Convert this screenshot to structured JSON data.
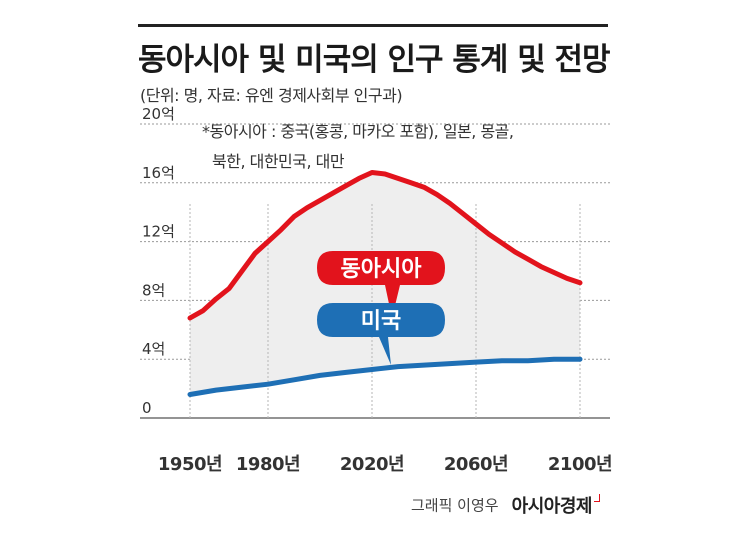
{
  "header": {
    "title": "동아시아 및 미국의 인구 통계 및 전망",
    "subtitle": "(단위: 명, 자료: 유엔 경제사회부 인구과)",
    "note_line1": "*동아시아 : 중국(홍콩, 마카오 포함), 일본, 몽골,",
    "note_line2": "북한, 대한민국, 대만"
  },
  "credit": {
    "graphics": "그래픽 이영우",
    "brand": "아시아경제"
  },
  "colors": {
    "east_asia": "#e2131c",
    "usa": "#1e6fb5",
    "area_fill": "#eeeeee"
  },
  "chart_data": {
    "type": "line",
    "x_tick_labels": [
      "1950년",
      "1980년",
      "2020년",
      "2060년",
      "2100년"
    ],
    "x_ticks": [
      1950,
      1980,
      2020,
      2060,
      2100
    ],
    "y_tick_labels": [
      "0",
      "4억",
      "8억",
      "12억",
      "16억",
      "20억"
    ],
    "y_ticks": [
      0,
      4,
      8,
      12,
      16,
      20
    ],
    "ylim": [
      0,
      20
    ],
    "xlim": [
      1950,
      2100
    ],
    "grid": true,
    "series": [
      {
        "name": "동아시아",
        "color": "#e2131c",
        "x": [
          1950,
          1955,
          1960,
          1965,
          1970,
          1975,
          1980,
          1985,
          1990,
          1995,
          2000,
          2005,
          2010,
          2015,
          2020,
          2025,
          2030,
          2035,
          2040,
          2045,
          2050,
          2055,
          2060,
          2065,
          2070,
          2075,
          2080,
          2085,
          2090,
          2095,
          2100
        ],
        "values": [
          6.8,
          7.3,
          8.1,
          8.8,
          10.0,
          11.2,
          12.0,
          12.8,
          13.7,
          14.3,
          14.8,
          15.3,
          15.8,
          16.3,
          16.7,
          16.6,
          16.3,
          16.0,
          15.7,
          15.2,
          14.6,
          13.9,
          13.2,
          12.5,
          11.9,
          11.3,
          10.8,
          10.3,
          9.9,
          9.5,
          9.2
        ]
      },
      {
        "name": "미국",
        "color": "#1e6fb5",
        "x": [
          1950,
          1960,
          1970,
          1980,
          1990,
          2000,
          2010,
          2020,
          2030,
          2040,
          2050,
          2060,
          2070,
          2080,
          2090,
          2100
        ],
        "values": [
          1.6,
          1.9,
          2.1,
          2.3,
          2.6,
          2.9,
          3.1,
          3.3,
          3.5,
          3.6,
          3.7,
          3.8,
          3.9,
          3.9,
          4.0,
          4.0
        ]
      }
    ]
  }
}
